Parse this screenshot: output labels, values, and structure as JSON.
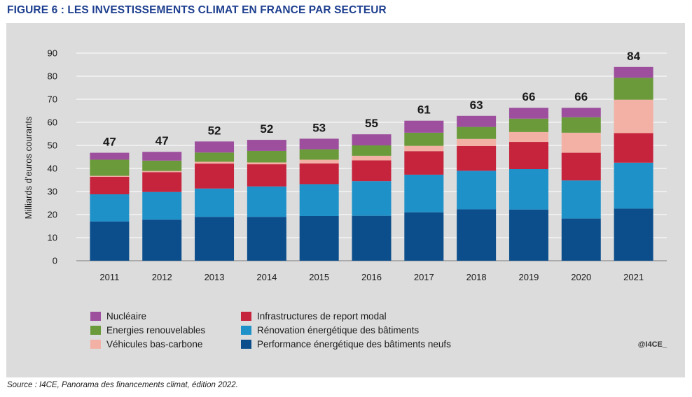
{
  "figure_title": "FIGURE 6 : LES INVESTISSEMENTS CLIMAT EN FRANCE PAR SECTEUR",
  "source": "Source : I4CE, Panorama des financements climat, édition 2022.",
  "brand": "@I4CE_",
  "chart_data": {
    "type": "bar",
    "stacked": true,
    "categories": [
      "2011",
      "2012",
      "2013",
      "2014",
      "2015",
      "2016",
      "2017",
      "2018",
      "2019",
      "2020",
      "2021"
    ],
    "totals": [
      "47",
      "47",
      "52",
      "52",
      "53",
      "55",
      "61",
      "63",
      "66",
      "66",
      "84"
    ],
    "ylabel": "Milliards d'euros courants",
    "ylim": [
      0,
      90
    ],
    "yticks": [
      "0",
      "10",
      "20",
      "30",
      "40",
      "50",
      "60",
      "70",
      "80",
      "90"
    ],
    "grid": true,
    "legend_position": "bottom-left",
    "series": [
      {
        "name": "Performance énergétique des bâtiments neufs",
        "color": "#0c4e8c",
        "values": [
          17,
          17.8,
          19,
          19,
          19.4,
          19.5,
          21,
          22.3,
          22.2,
          18.3,
          22.6
        ]
      },
      {
        "name": "Rénovation énergétique des bâtiments",
        "color": "#1f91c9",
        "values": [
          11.8,
          12,
          12.3,
          13.2,
          13.8,
          15,
          16.3,
          16.7,
          17.5,
          16.5,
          19.9
        ]
      },
      {
        "name": "Infrastructures de report modal",
        "color": "#c6233c",
        "values": [
          7.6,
          8.6,
          10.8,
          9.6,
          9,
          9,
          10.2,
          10.7,
          11.8,
          12,
          12.8
        ]
      },
      {
        "name": "Véhicules bas-carbone",
        "color": "#f3b0a5",
        "values": [
          0.4,
          0.5,
          0.8,
          0.8,
          1.6,
          2,
          2.3,
          3.1,
          4.3,
          8.7,
          14.5
        ]
      },
      {
        "name": "Energies renouvelables",
        "color": "#6a9a3a",
        "values": [
          7,
          4.5,
          4,
          5,
          4.5,
          4.5,
          5.7,
          5.2,
          5.8,
          6.7,
          9.5
        ]
      },
      {
        "name": "Nucléaire",
        "color": "#9d4f9e",
        "values": [
          3,
          3.8,
          4.8,
          4.8,
          4.6,
          4.8,
          5.2,
          4.8,
          4.7,
          4.1,
          4.7
        ]
      }
    ],
    "legend_order": [
      "Nucléaire",
      "Energies renouvelables",
      "Véhicules bas-carbone",
      "Infrastructures de report modal",
      "Rénovation énergétique des bâtiments",
      "Performance énergétique des bâtiments neufs"
    ]
  }
}
